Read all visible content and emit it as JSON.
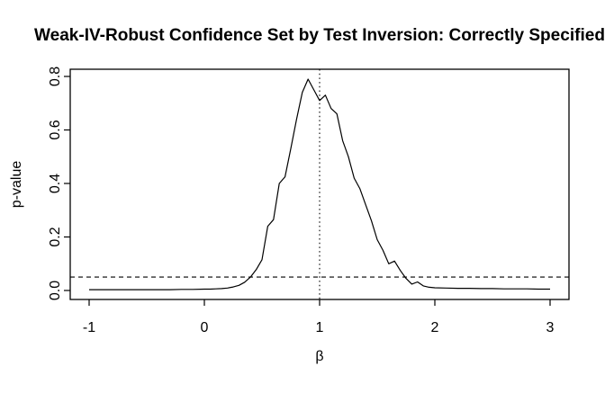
{
  "window": {
    "background_color": "#ffffff",
    "foreground_color": "#000000"
  },
  "chart_data": {
    "type": "line",
    "title": "Weak-IV-Robust Confidence Set by Test Inversion: Correctly Specified",
    "xlabel": "β",
    "ylabel": "p-value",
    "xlim": [
      -1.16,
      3.16
    ],
    "ylim": [
      -0.03,
      0.83
    ],
    "grid": false,
    "legend_position": "none",
    "x_ticks": {
      "values": [
        -1,
        0,
        1,
        2,
        3
      ],
      "labels": [
        "-1",
        "0",
        "1",
        "2",
        "3"
      ]
    },
    "y_ticks": {
      "values": [
        0.0,
        0.2,
        0.4,
        0.6,
        0.8
      ],
      "labels": [
        "0.0",
        "0.2",
        "0.4",
        "0.6",
        "0.8"
      ]
    },
    "series": [
      {
        "name": "p-value curve",
        "color": "#000000",
        "x": [
          -1.0,
          -0.9,
          -0.8,
          -0.7,
          -0.6,
          -0.5,
          -0.4,
          -0.3,
          -0.2,
          -0.1,
          0.0,
          0.05,
          0.1,
          0.15,
          0.2,
          0.25,
          0.3,
          0.35,
          0.4,
          0.45,
          0.5,
          0.55,
          0.6,
          0.65,
          0.7,
          0.75,
          0.8,
          0.85,
          0.9,
          0.95,
          1.0,
          1.05,
          1.1,
          1.15,
          1.2,
          1.25,
          1.3,
          1.35,
          1.4,
          1.45,
          1.5,
          1.55,
          1.6,
          1.65,
          1.7,
          1.75,
          1.8,
          1.85,
          1.9,
          1.95,
          2.0,
          2.1,
          2.2,
          2.3,
          2.4,
          2.5,
          2.6,
          2.7,
          2.8,
          2.9,
          3.0
        ],
        "y": [
          0.003,
          0.003,
          0.003,
          0.003,
          0.003,
          0.003,
          0.003,
          0.003,
          0.004,
          0.004,
          0.005,
          0.005,
          0.006,
          0.007,
          0.009,
          0.013,
          0.019,
          0.031,
          0.05,
          0.078,
          0.115,
          0.24,
          0.265,
          0.4,
          0.425,
          0.53,
          0.64,
          0.74,
          0.79,
          0.75,
          0.71,
          0.73,
          0.68,
          0.66,
          0.56,
          0.5,
          0.42,
          0.38,
          0.32,
          0.26,
          0.19,
          0.15,
          0.1,
          0.11,
          0.075,
          0.045,
          0.024,
          0.032,
          0.017,
          0.012,
          0.01,
          0.009,
          0.008,
          0.008,
          0.007,
          0.007,
          0.006,
          0.006,
          0.006,
          0.005,
          0.005
        ]
      }
    ],
    "reference_lines": [
      {
        "orientation": "horizontal",
        "value": 0.05,
        "style": "dashed",
        "color": "#000000",
        "meaning": "significance level 0.05"
      },
      {
        "orientation": "vertical",
        "value": 1,
        "style": "dotted",
        "color": "#000000",
        "meaning": "beta = 1"
      }
    ]
  }
}
